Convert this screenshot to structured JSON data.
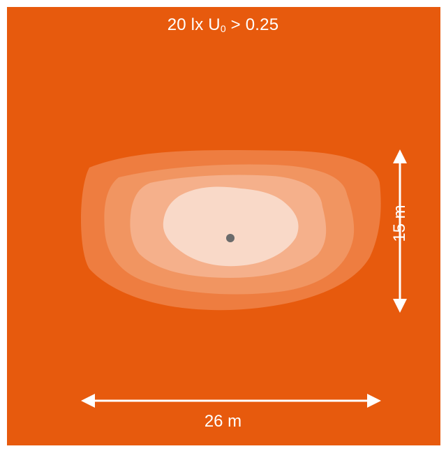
{
  "title": {
    "prefix": "20 lx U",
    "subscript": "0",
    "suffix": " > 0.25"
  },
  "dimensions": {
    "width_label": "26 m",
    "height_label": "15 m"
  },
  "colors": {
    "background": "#e75a0d",
    "contour_outer": "#ee7d40",
    "contour_2": "#f19561",
    "contour_3": "#f5b08b",
    "contour_inner": "#f9d9c8",
    "center_point": "#6b6b6b",
    "arrows": "#ffffff"
  }
}
